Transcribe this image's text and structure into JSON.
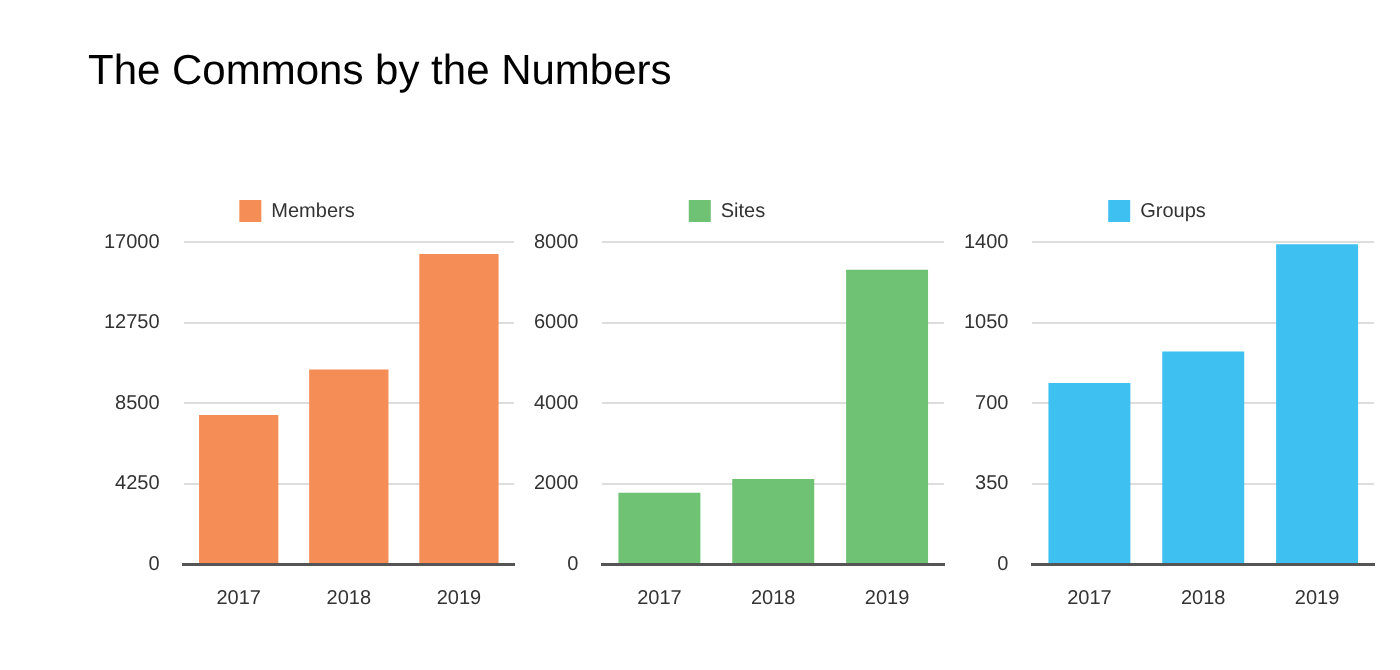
{
  "chart_data": [
    {
      "type": "bar",
      "title": "The Commons by the Numbers",
      "categories": [
        "2017",
        "2018",
        "2019"
      ],
      "series": [
        {
          "name": "Members",
          "color": "#f58d57",
          "values": [
            7860,
            10270,
            16360
          ]
        }
      ],
      "ylim": [
        0,
        17000
      ],
      "yticks": [
        0,
        4250,
        8500,
        12750,
        17000
      ],
      "grid": "y",
      "legend": "top"
    },
    {
      "type": "bar",
      "categories": [
        "2017",
        "2018",
        "2019"
      ],
      "series": [
        {
          "name": "Sites",
          "color": "#6fc173",
          "values": [
            1770,
            2110,
            7310
          ]
        }
      ],
      "ylim": [
        0,
        8000
      ],
      "yticks": [
        0,
        2000,
        4000,
        6000,
        8000
      ],
      "grid": "y",
      "legend": "top"
    },
    {
      "type": "bar",
      "categories": [
        "2017",
        "2018",
        "2019"
      ],
      "series": [
        {
          "name": "Groups",
          "color": "#3ec0f1",
          "values": [
            787,
            924,
            1390
          ]
        }
      ],
      "ylim": [
        0,
        1400
      ],
      "yticks": [
        0,
        350,
        700,
        1050,
        1400
      ],
      "grid": "y",
      "legend": "top"
    }
  ]
}
